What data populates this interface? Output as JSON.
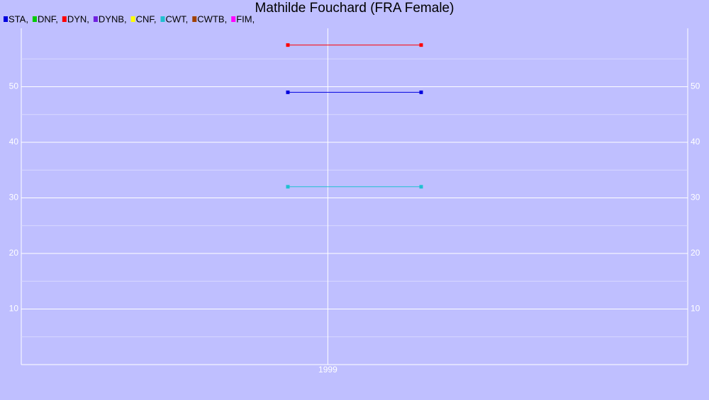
{
  "chart_data": {
    "type": "line",
    "title": "Mathilde Fouchard (FRA Female)",
    "x": [
      1998.4,
      2000.4
    ],
    "xlim": [
      1994.4,
      2004.4
    ],
    "xticks": [
      1999
    ],
    "ylim": [
      0,
      60
    ],
    "yticks": [
      10,
      20,
      30,
      40,
      50
    ],
    "minor_yticks": [
      5,
      15,
      25,
      35,
      45,
      55
    ],
    "grid": true,
    "right_axis_labels": true,
    "legend": "top-left",
    "series": [
      {
        "name": "STA,",
        "color": "#0000dd",
        "values": [
          49,
          49
        ]
      },
      {
        "name": "DNF,",
        "color": "#00cc00",
        "values": [
          null,
          null
        ]
      },
      {
        "name": "DYN,",
        "color": "#ff0000",
        "values": [
          57.5,
          57.5
        ]
      },
      {
        "name": "DYNB,",
        "color": "#7020e0",
        "values": [
          null,
          null
        ]
      },
      {
        "name": "CNF,",
        "color": "#ffff00",
        "values": [
          null,
          null
        ]
      },
      {
        "name": "CWT,",
        "color": "#20c0d0",
        "values": [
          32,
          32
        ]
      },
      {
        "name": "CWTB,",
        "color": "#a04000",
        "values": [
          null,
          null
        ]
      },
      {
        "name": "FIM,",
        "color": "#ff00ff",
        "values": [
          null,
          null
        ]
      }
    ]
  }
}
